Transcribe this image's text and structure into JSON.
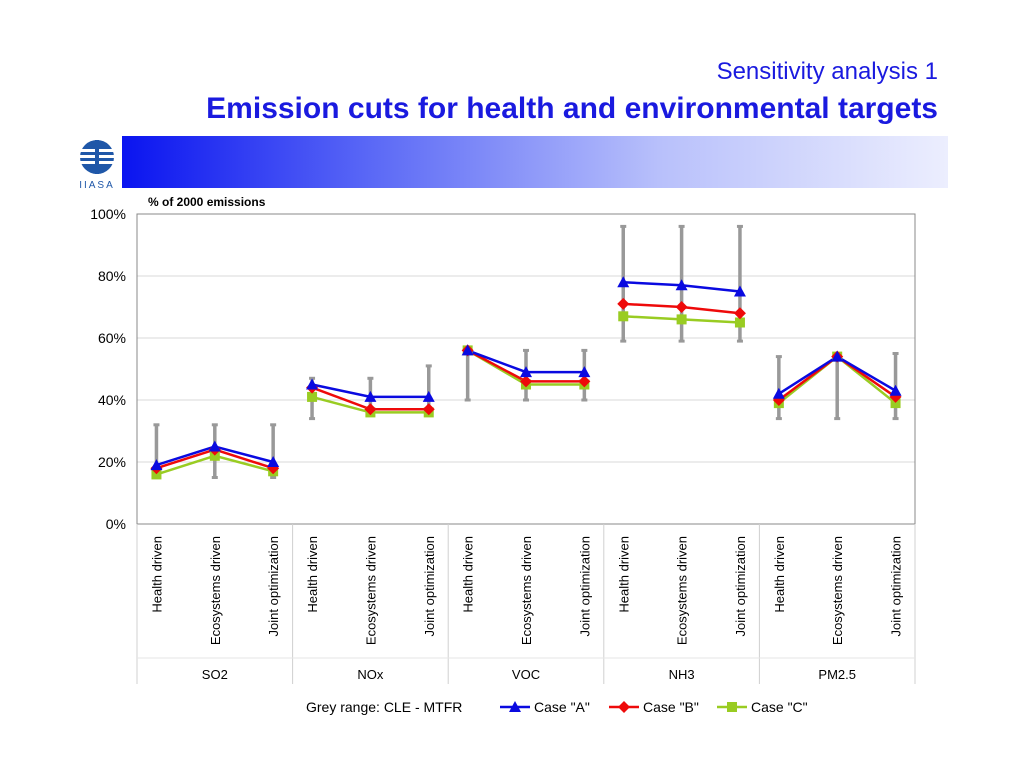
{
  "header": {
    "subtitle": "Sensitivity analysis 1",
    "title": "Emission cuts for health and environmental targets",
    "logo_text": "IIASA"
  },
  "colors": {
    "title": "#1a1adf",
    "caseA": "#0a0ae0",
    "caseB": "#ee0a0a",
    "caseC": "#99cc22",
    "range": "#999999",
    "grid": "#d9d9d9"
  },
  "chart_data": {
    "type": "line",
    "title": "% of 2000 emissions",
    "ylim": [
      0,
      100
    ],
    "yticks": [
      "0%",
      "20%",
      "40%",
      "60%",
      "80%",
      "100%"
    ],
    "ytick_values": [
      0,
      20,
      40,
      60,
      80,
      100
    ],
    "subcategories": [
      "Health driven",
      "Ecosystems driven",
      "Joint optimization"
    ],
    "groups": [
      {
        "name": "SO2",
        "range": [
          [
            16,
            32
          ],
          [
            15,
            32
          ],
          [
            15,
            32
          ]
        ]
      },
      {
        "name": "NOx",
        "range": [
          [
            34,
            47
          ],
          [
            35,
            47
          ],
          [
            35,
            51
          ]
        ]
      },
      {
        "name": "VOC",
        "range": [
          [
            40,
            56
          ],
          [
            40,
            56
          ],
          [
            40,
            56
          ]
        ]
      },
      {
        "name": "NH3",
        "range": [
          [
            59,
            96
          ],
          [
            59,
            96
          ],
          [
            59,
            96
          ]
        ]
      },
      {
        "name": "PM2.5",
        "range": [
          [
            34,
            54
          ],
          [
            34,
            54
          ],
          [
            34,
            55
          ]
        ]
      }
    ],
    "series": [
      {
        "name": "Case \"A\"",
        "marker": "triangle",
        "values": [
          [
            19,
            25,
            20
          ],
          [
            45,
            41,
            41
          ],
          [
            56,
            49,
            49
          ],
          [
            78,
            77,
            75
          ],
          [
            42,
            54,
            43
          ]
        ]
      },
      {
        "name": "Case \"B\"",
        "marker": "diamond",
        "values": [
          [
            18,
            24,
            18
          ],
          [
            44,
            37,
            37
          ],
          [
            56,
            46,
            46
          ],
          [
            71,
            70,
            68
          ],
          [
            40,
            54,
            41
          ]
        ]
      },
      {
        "name": "Case \"C\"",
        "marker": "square",
        "values": [
          [
            16,
            22,
            17
          ],
          [
            41,
            36,
            36
          ],
          [
            56,
            45,
            45
          ],
          [
            67,
            66,
            65
          ],
          [
            39,
            54,
            39
          ]
        ]
      }
    ],
    "range_label": "Grey range: CLE - MTFR",
    "legend_position": "bottom",
    "grid": true
  }
}
